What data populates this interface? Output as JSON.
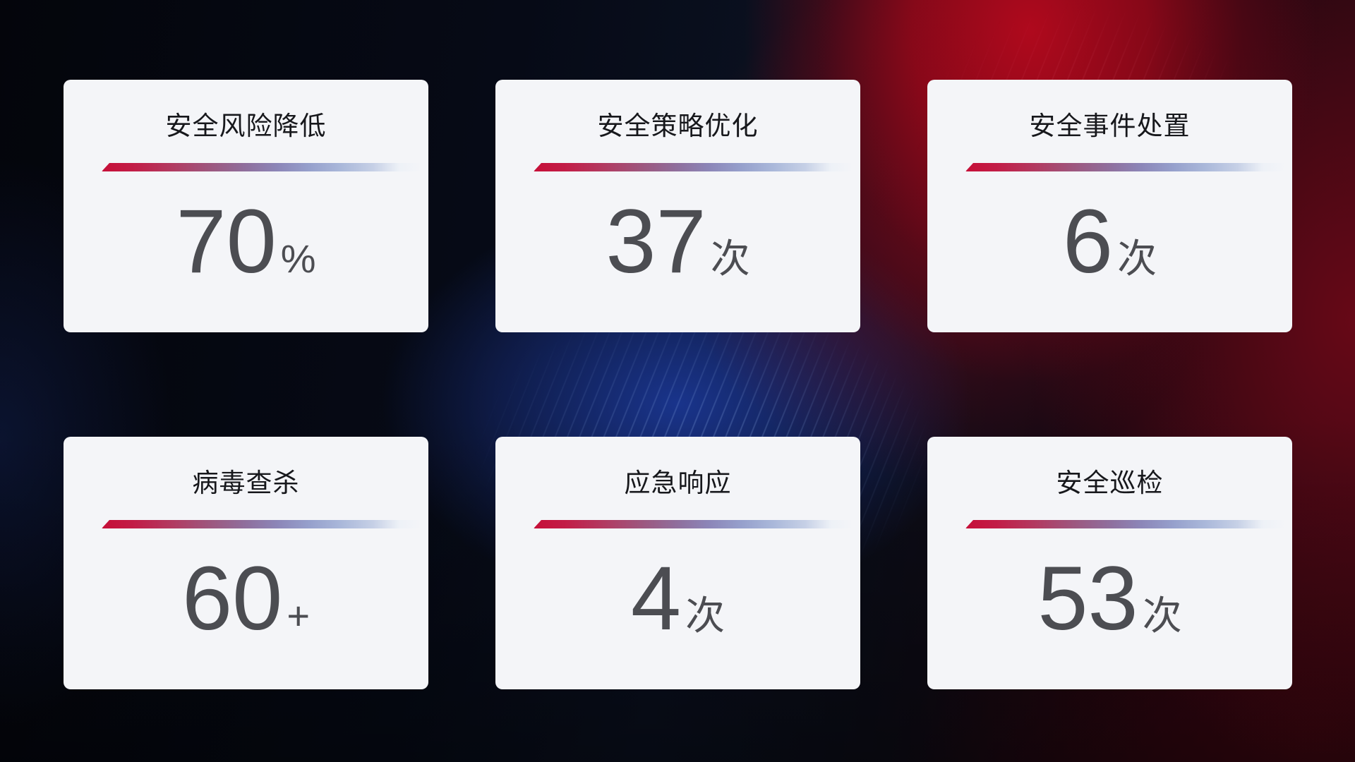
{
  "colors": {
    "background_base": "#05060c",
    "background_red_glow": "#a00a1e",
    "background_blue_glow": "#1c3a9e",
    "card_background": "#f4f5f8",
    "divider_red": "#c60f38",
    "divider_blue": "#aab8da",
    "title_color": "#17181c",
    "value_color": "#4c4d52"
  },
  "cards": [
    {
      "title": "安全风险降低",
      "value": "70",
      "unit": "%"
    },
    {
      "title": "安全策略优化",
      "value": "37",
      "unit": "次"
    },
    {
      "title": "安全事件处置",
      "value": "6",
      "unit": "次"
    },
    {
      "title": "病毒查杀",
      "value": "60",
      "unit": "+"
    },
    {
      "title": "应急响应",
      "value": "4",
      "unit": "次"
    },
    {
      "title": "安全巡检",
      "value": "53",
      "unit": "次"
    }
  ]
}
